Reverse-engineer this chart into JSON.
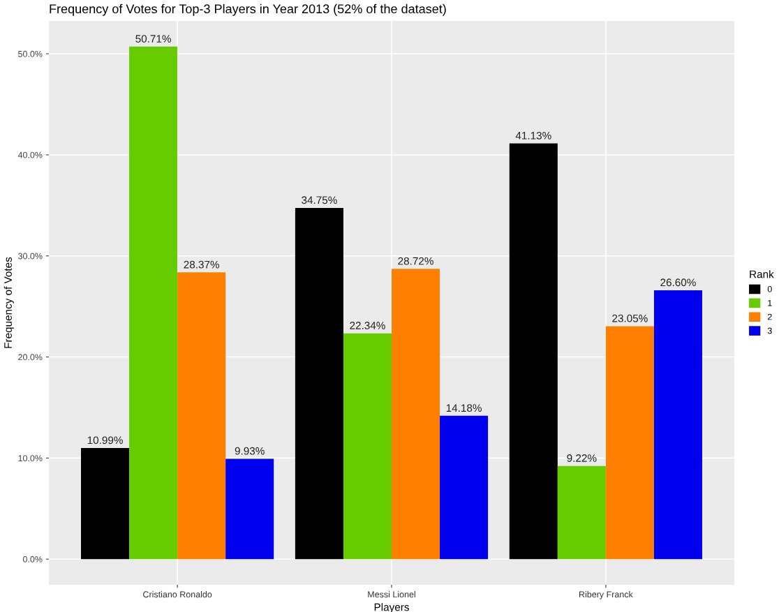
{
  "chart_data": {
    "type": "bar",
    "title": "Frequency of Votes for Top-3 Players in Year 2013 (52% of the dataset)",
    "xlabel": "Players",
    "ylabel": "Frequency of Votes",
    "legend_title": "Rank",
    "legend": "right",
    "grid": true,
    "categories": [
      "Cristiano Ronaldo",
      "Messi Lionel",
      "Ribery Franck"
    ],
    "series": [
      {
        "name": "0",
        "color": "#000000",
        "values": [
          10.99,
          34.75,
          41.13
        ],
        "value_labels": [
          "10.99%",
          "34.75%",
          "41.13%"
        ]
      },
      {
        "name": "1",
        "color": "#66cc00",
        "values": [
          50.71,
          22.34,
          9.22
        ],
        "value_labels": [
          "50.71%",
          "22.34%",
          "9.22%"
        ]
      },
      {
        "name": "2",
        "color": "#ff8000",
        "values": [
          28.37,
          28.72,
          23.05
        ],
        "value_labels": [
          "28.37%",
          "28.72%",
          "23.05%"
        ]
      },
      {
        "name": "3",
        "color": "#0000ee",
        "values": [
          9.93,
          14.18,
          26.6
        ],
        "value_labels": [
          "9.93%",
          "14.18%",
          "26.60%"
        ]
      }
    ],
    "ylim": [
      -2.54,
      53.25
    ],
    "yticks": [
      {
        "value": 0,
        "label": "0.0%"
      },
      {
        "value": 10,
        "label": "10.0%"
      },
      {
        "value": 20,
        "label": "20.0%"
      },
      {
        "value": 30,
        "label": "30.0%"
      },
      {
        "value": 40,
        "label": "40.0%"
      },
      {
        "value": 50,
        "label": "50.0%"
      }
    ]
  }
}
